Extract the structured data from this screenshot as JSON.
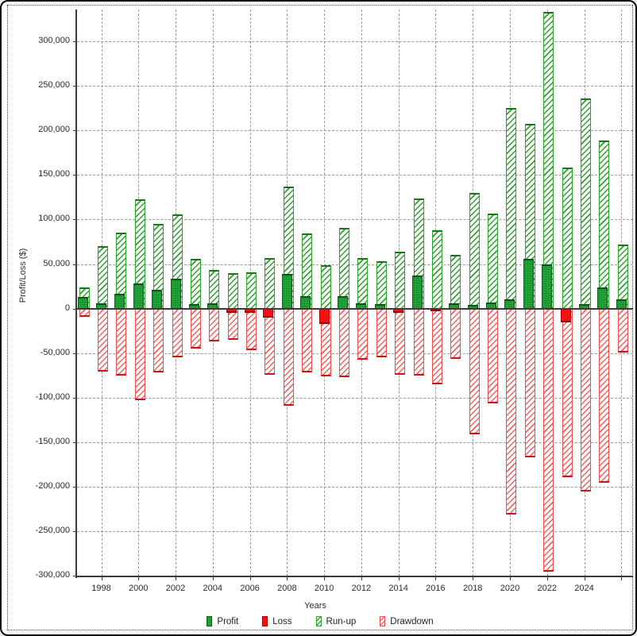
{
  "window": {
    "background": "#ffffff",
    "border_color": "#0a0a0a"
  },
  "axis": {
    "ylabel": "Profit/Loss ($)",
    "xlabel": "Years",
    "yticks": [
      {
        "value": 300000,
        "label": "300,000"
      },
      {
        "value": 250000,
        "label": "250,000"
      },
      {
        "value": 200000,
        "label": "200,000"
      },
      {
        "value": 150000,
        "label": "150,000"
      },
      {
        "value": 100000,
        "label": "100,000"
      },
      {
        "value": 50000,
        "label": "50,000"
      },
      {
        "value": 0,
        "label": "0"
      },
      {
        "value": -50000,
        "label": "-50,000"
      },
      {
        "value": -100000,
        "label": "-100,000"
      },
      {
        "value": -150000,
        "label": "-150,000"
      },
      {
        "value": -200000,
        "label": "-200,000"
      },
      {
        "value": -250000,
        "label": "-250,000"
      },
      {
        "value": -300000,
        "label": "-300,000"
      }
    ],
    "xticks": [
      {
        "year": 1998,
        "label": "1998"
      },
      {
        "year": 2000,
        "label": "2000"
      },
      {
        "year": 2002,
        "label": "2002"
      },
      {
        "year": 2004,
        "label": "2004"
      },
      {
        "year": 2006,
        "label": "2006"
      },
      {
        "year": 2008,
        "label": "2008"
      },
      {
        "year": 2010,
        "label": "2010"
      },
      {
        "year": 2012,
        "label": "2012"
      },
      {
        "year": 2014,
        "label": "2014"
      },
      {
        "year": 2016,
        "label": "2016"
      },
      {
        "year": 2018,
        "label": "2018"
      },
      {
        "year": 2020,
        "label": "2020"
      },
      {
        "year": 2022,
        "label": "2022"
      },
      {
        "year": 2024,
        "label": "2024"
      }
    ],
    "grid_year_min": 1998,
    "grid_year_max": 2026,
    "grid_year_step": 2
  },
  "legend": [
    {
      "label": "Profit",
      "style": "solid",
      "color": "#1b9e33"
    },
    {
      "label": "Loss",
      "style": "solid",
      "color": "#f51111"
    },
    {
      "label": "Run-up",
      "style": "hatch",
      "color": "#2ea12e"
    },
    {
      "label": "Drawdown",
      "style": "hatch",
      "color": "#ee5050"
    }
  ],
  "chart_data": {
    "type": "bar",
    "title": "",
    "xlabel": "Years",
    "ylabel": "Profit/Loss ($)",
    "ylim": [
      -310000,
      340000
    ],
    "ytick_step": 50000,
    "grid": true,
    "legend_position": "bottom",
    "categories": [
      1997,
      1998,
      1999,
      2000,
      2001,
      2002,
      2003,
      2004,
      2005,
      2006,
      2007,
      2008,
      2009,
      2010,
      2011,
      2012,
      2013,
      2014,
      2015,
      2016,
      2017,
      2018,
      2019,
      2020,
      2021,
      2022,
      2023,
      2024,
      2025,
      2026
    ],
    "series": [
      {
        "name": "Profit",
        "values": [
          13000,
          6000,
          17000,
          28000,
          21000,
          34000,
          5000,
          6000,
          null,
          null,
          null,
          39000,
          14000,
          null,
          14000,
          6000,
          5000,
          null,
          37000,
          null,
          6000,
          4000,
          7000,
          10000,
          56000,
          50000,
          null,
          5000,
          24000,
          10000
        ]
      },
      {
        "name": "Loss",
        "values": [
          null,
          null,
          null,
          null,
          null,
          null,
          null,
          null,
          -5000,
          -5000,
          -10000,
          null,
          null,
          -17000,
          null,
          null,
          null,
          -5000,
          null,
          -2000,
          null,
          null,
          null,
          null,
          null,
          null,
          -15000,
          null,
          null,
          null
        ]
      },
      {
        "name": "Run-up",
        "values": [
          24000,
          70000,
          85000,
          123000,
          95000,
          106000,
          56000,
          43000,
          40000,
          41000,
          57000,
          137000,
          84000,
          49000,
          91000,
          57000,
          53000,
          64000,
          124000,
          88000,
          60000,
          130000,
          107000,
          225000,
          207000,
          333000,
          158000,
          236000,
          189000,
          72000
        ]
      },
      {
        "name": "Drawdown",
        "values": [
          -9000,
          -71000,
          -75000,
          -103000,
          -72000,
          -55000,
          -45000,
          -37000,
          -35000,
          -47000,
          -74000,
          -109000,
          -72000,
          -76000,
          -77000,
          -57000,
          -55000,
          -74000,
          -75000,
          -85000,
          -56000,
          -141000,
          -106000,
          -231000,
          -167000,
          -295000,
          -189000,
          -205000,
          -195000,
          -49000
        ]
      }
    ]
  }
}
